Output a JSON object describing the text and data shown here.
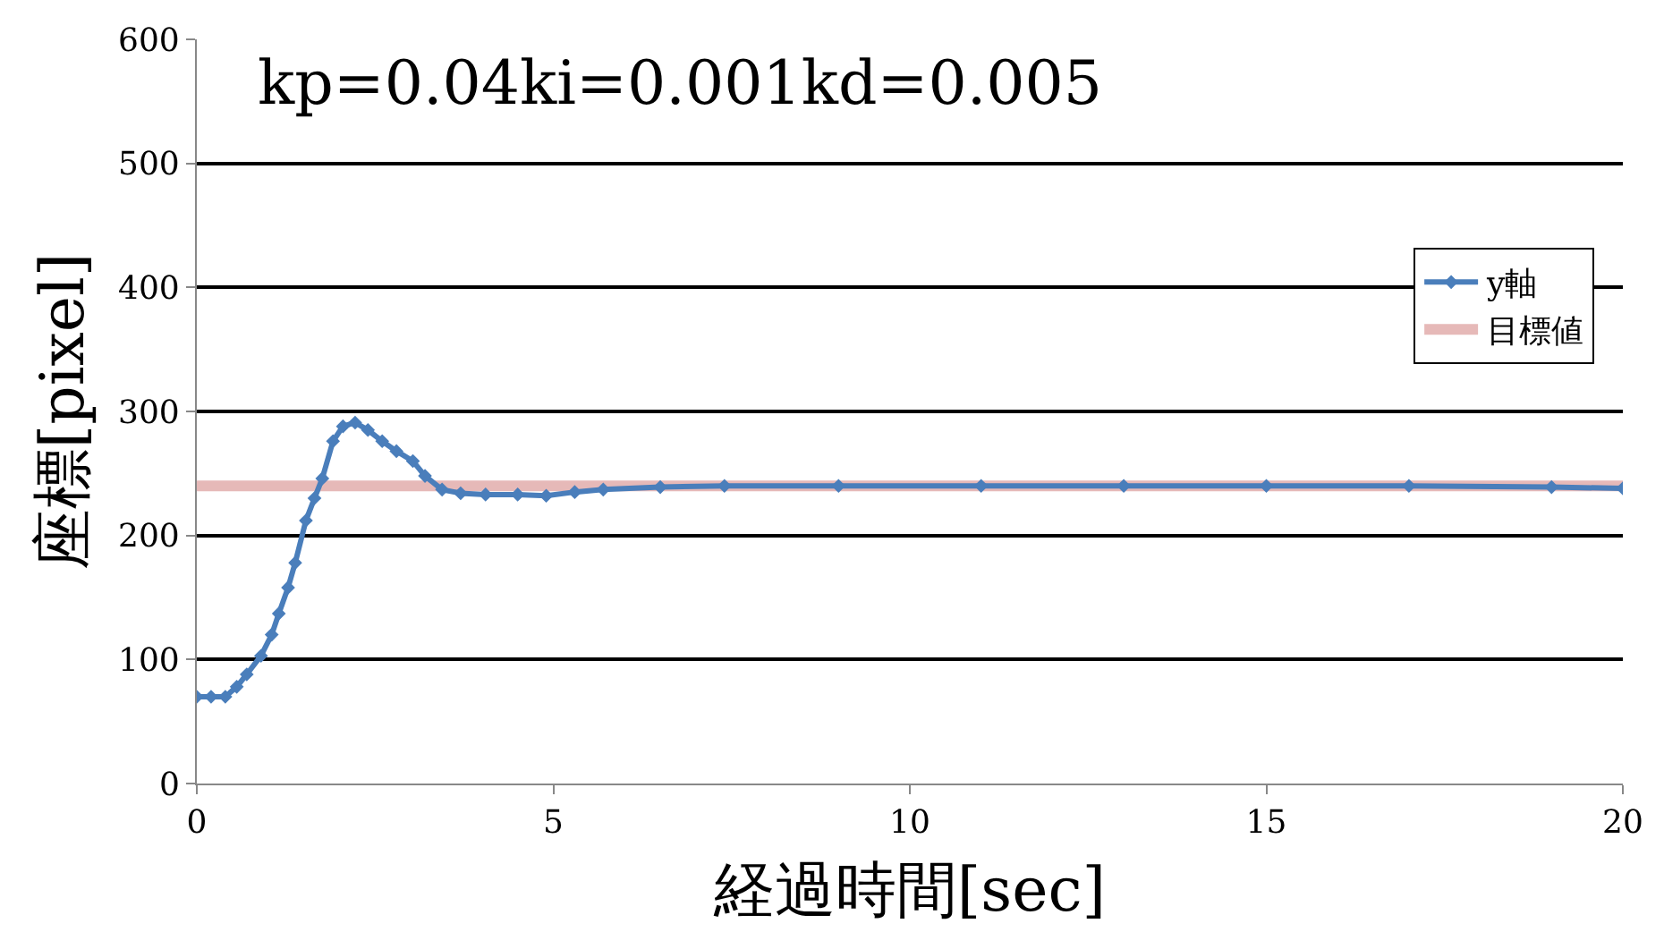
{
  "chart_data": {
    "type": "line",
    "xlabel": "経過時間[sec]",
    "ylabel": "座標[pixel]",
    "annotations": [
      "kp=0.04ki=0.001kd=0.005"
    ],
    "xlim": [
      0,
      20
    ],
    "xticks": [
      0,
      5,
      10,
      15,
      20
    ],
    "ylim": [
      0,
      600
    ],
    "yticks": [
      0,
      100,
      200,
      300,
      400,
      500,
      600
    ],
    "grid": "y",
    "legend": "top right",
    "series": [
      {
        "name": "y軸",
        "color": "#4a7ebb",
        "marker": "diamond",
        "x": [
          0,
          0.2,
          0.4,
          0.56,
          0.7,
          0.9,
          1.05,
          1.15,
          1.28,
          1.38,
          1.53,
          1.65,
          1.76,
          1.91,
          2.05,
          2.22,
          2.4,
          2.6,
          2.8,
          3.03,
          3.2,
          3.44,
          3.7,
          4.05,
          4.5,
          4.9,
          5.3,
          5.7,
          6.5,
          7.4,
          9,
          11,
          13,
          15,
          17,
          19,
          20
        ],
        "values": [
          70,
          70,
          70,
          78,
          88,
          103,
          120,
          137,
          158,
          178,
          212,
          230,
          246,
          276,
          288,
          291,
          285,
          276,
          268,
          260,
          248,
          237,
          234,
          233,
          233,
          232,
          235,
          237,
          239,
          240,
          240,
          240,
          240,
          240,
          240,
          239,
          238
        ]
      },
      {
        "name": "目標値",
        "color": "#e6b9b8",
        "marker": "square",
        "x": [
          0,
          20
        ],
        "values": [
          240,
          240
        ]
      }
    ]
  }
}
